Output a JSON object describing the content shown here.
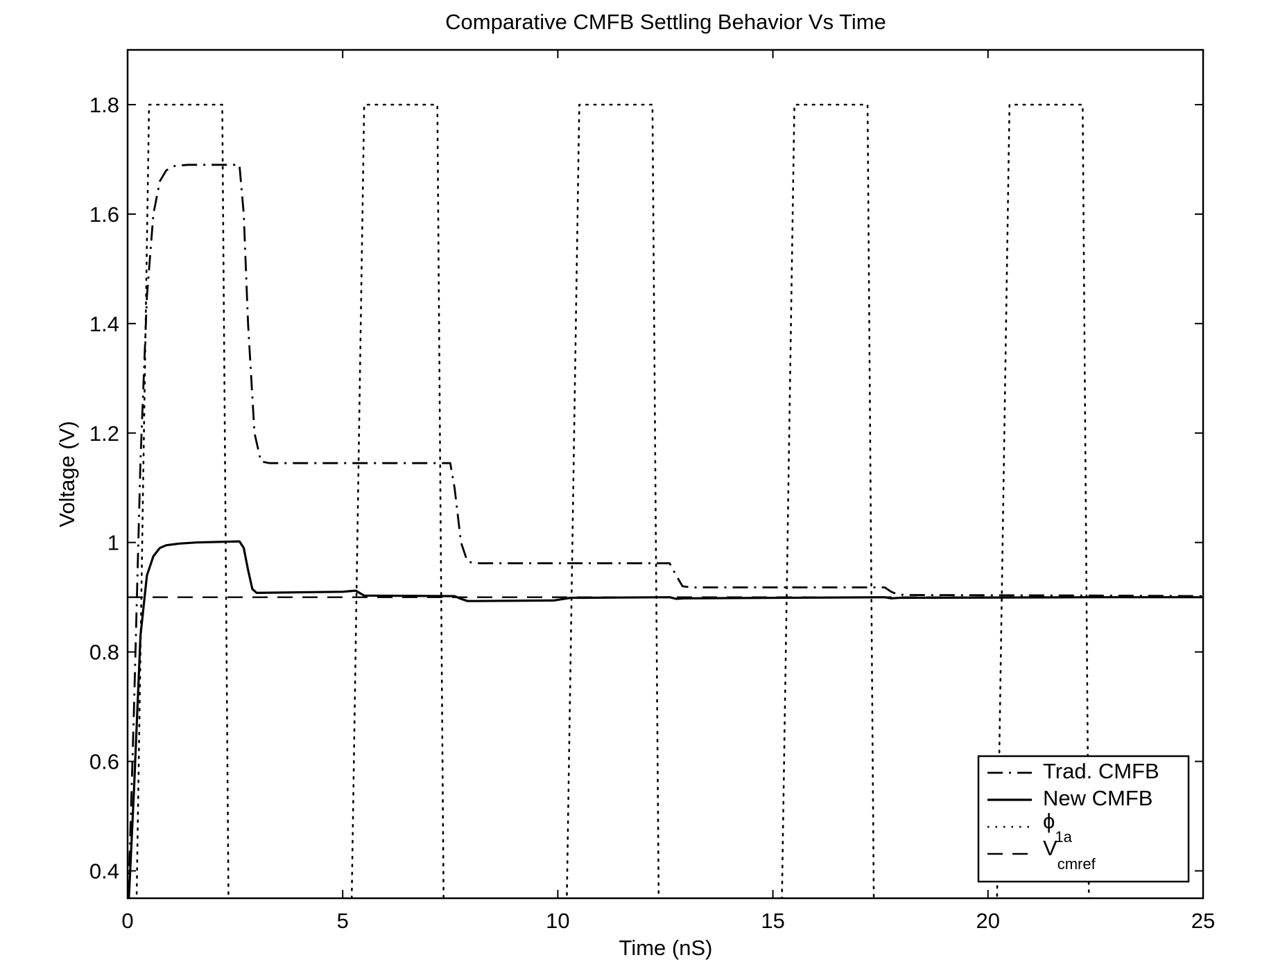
{
  "chart_data": {
    "type": "line",
    "title": "Comparative CMFB Settling Behavior Vs Time",
    "xlabel": "Time (nS)",
    "ylabel": "Voltage (V)",
    "xlim": [
      0,
      25
    ],
    "ylim": [
      0.35,
      1.9
    ],
    "xticks": [
      0,
      5,
      10,
      15,
      20,
      25
    ],
    "yticks": [
      0.4,
      0.6,
      0.8,
      1,
      1.2,
      1.4,
      1.6,
      1.8
    ],
    "xtick_labels": [
      "0",
      "5",
      "10",
      "15",
      "20",
      "25"
    ],
    "ytick_labels": [
      "0.4",
      "0.6",
      "0.8",
      "1",
      "1.2",
      "1.4",
      "1.6",
      "1.8"
    ],
    "grid": false,
    "legend_position": "bottom-right",
    "legend": [
      {
        "key": "trad",
        "label": "Trad. CMFB",
        "style": "dash-dot"
      },
      {
        "key": "new",
        "label": "New CMFB",
        "style": "solid"
      },
      {
        "key": "phi",
        "label": "ϕ",
        "sub": "1a",
        "style": "dotted"
      },
      {
        "key": "vcm",
        "label": "V",
        "sub": "cmref",
        "style": "dashed"
      }
    ],
    "series": [
      {
        "key": "trad",
        "name": "Trad. CMFB",
        "style": "dash-dot",
        "x": [
          0,
          0.15,
          0.3,
          0.45,
          0.6,
          0.75,
          0.9,
          1.1,
          1.4,
          2.0,
          2.6,
          2.7,
          2.8,
          2.95,
          3.1,
          3.3,
          7.5,
          7.6,
          7.75,
          7.9,
          8.1,
          12.6,
          12.75,
          12.9,
          13.1,
          17.6,
          17.75,
          17.9,
          18.1,
          22.5,
          25
        ],
        "y": [
          0.3,
          0.7,
          1.15,
          1.45,
          1.6,
          1.66,
          1.68,
          1.688,
          1.69,
          1.69,
          1.69,
          1.6,
          1.4,
          1.2,
          1.148,
          1.145,
          1.145,
          1.1,
          1.0,
          0.965,
          0.962,
          0.962,
          0.94,
          0.92,
          0.918,
          0.918,
          0.91,
          0.905,
          0.904,
          0.903,
          0.902
        ]
      },
      {
        "key": "new",
        "name": "New CMFB",
        "style": "solid",
        "x": [
          0,
          0.15,
          0.3,
          0.45,
          0.6,
          0.75,
          0.9,
          1.2,
          1.6,
          2.6,
          2.7,
          2.8,
          2.9,
          3.0,
          5.0,
          5.3,
          5.5,
          7.6,
          7.75,
          7.9,
          8.1,
          9.9,
          10.3,
          10.6,
          12.6,
          12.75,
          12.95,
          17.6,
          17.75,
          17.95,
          22.5,
          25
        ],
        "y": [
          0.3,
          0.55,
          0.83,
          0.94,
          0.975,
          0.99,
          0.995,
          0.998,
          1.0,
          1.002,
          0.99,
          0.95,
          0.915,
          0.908,
          0.91,
          0.912,
          0.903,
          0.902,
          0.897,
          0.893,
          0.893,
          0.894,
          0.899,
          0.899,
          0.9,
          0.897,
          0.898,
          0.9,
          0.898,
          0.899,
          0.9,
          0.9
        ]
      },
      {
        "key": "phi",
        "name": "ϕ1a",
        "style": "dotted",
        "x": [
          0.2,
          0.5,
          2.2,
          2.35,
          5.2,
          5.5,
          7.2,
          7.35,
          10.2,
          10.5,
          12.2,
          12.35,
          15.2,
          15.5,
          17.2,
          17.35,
          20.2,
          20.5,
          22.2,
          22.35,
          25
        ],
        "y": [
          0.3,
          1.8,
          1.8,
          0.3,
          0.3,
          1.8,
          1.8,
          0.3,
          0.3,
          1.8,
          1.8,
          0.3,
          0.3,
          1.8,
          1.8,
          0.3,
          0.3,
          1.8,
          1.8,
          0.3,
          0.3
        ]
      },
      {
        "key": "vcm",
        "name": "Vcmref",
        "style": "dashed",
        "x": [
          0,
          25
        ],
        "y": [
          0.9,
          0.9
        ]
      }
    ]
  }
}
